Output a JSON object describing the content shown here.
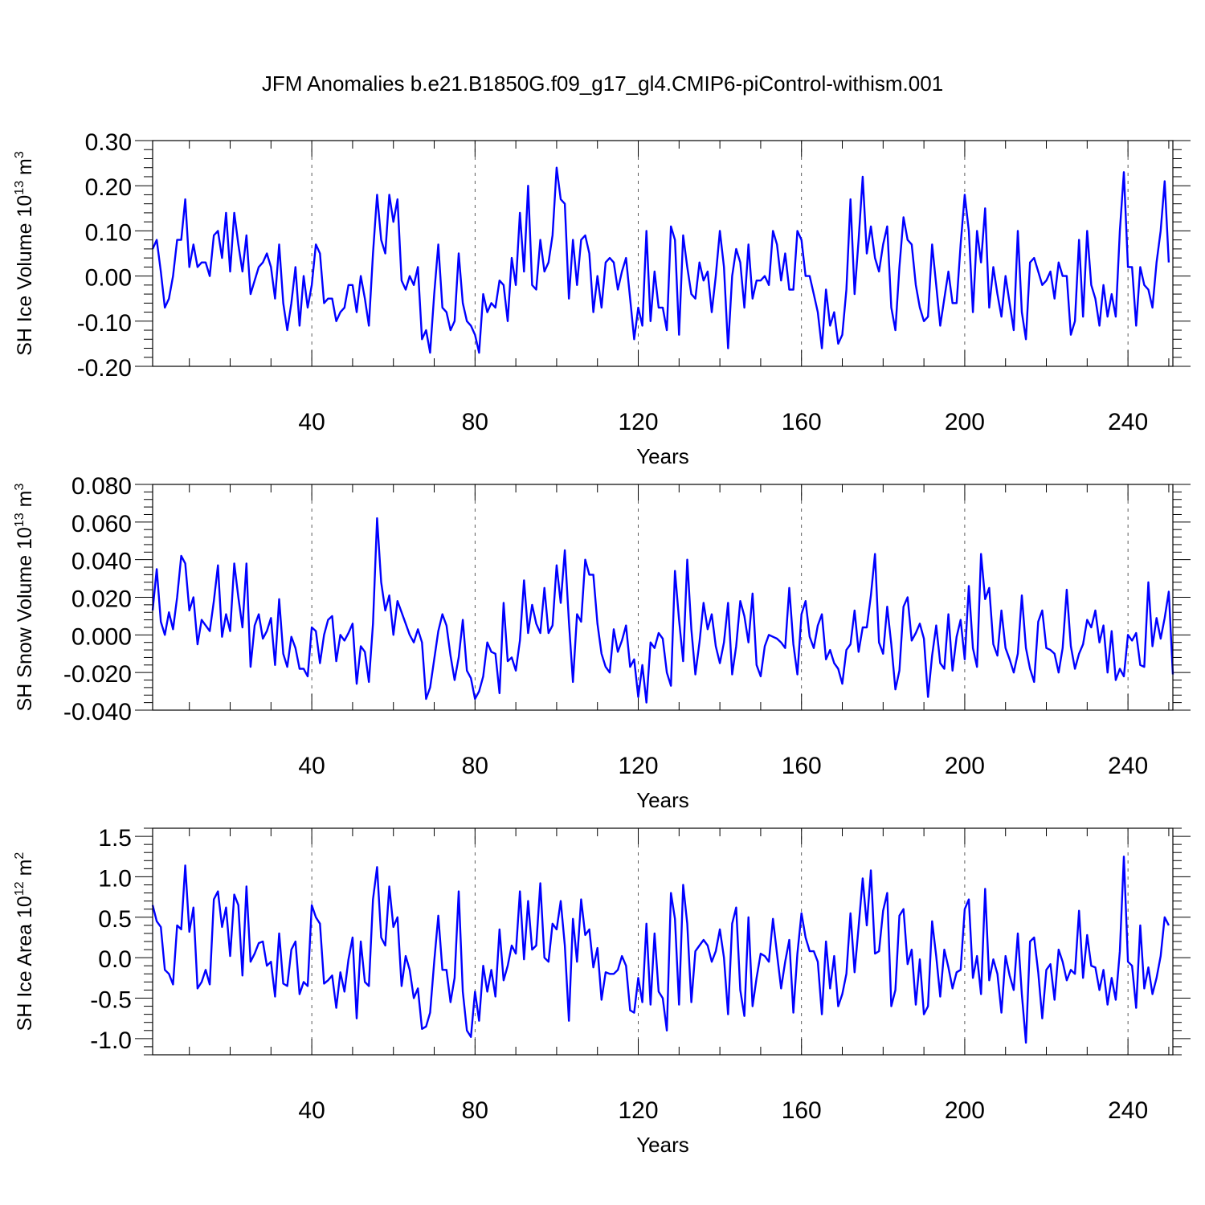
{
  "title": "JFM Anomalies b.e21.B1850G.f09_g17_gl4.CMIP6-piControl-withism.001",
  "chart_data": [
    {
      "type": "line",
      "ylabel_text": "SH Ice Volume 10",
      "ylabel_exp": "13",
      "ylabel_unit": " m",
      "ylabel_unit_exp": "3",
      "xlabel": "Years",
      "xlim": [
        1,
        251
      ],
      "ylim": [
        -0.2,
        0.3
      ],
      "yticks": [
        -0.2,
        -0.1,
        0.0,
        0.1,
        0.2,
        0.3
      ],
      "ytick_labels": [
        "-0.20",
        "-0.10",
        "0.00",
        "0.10",
        "0.20",
        "0.30"
      ],
      "xticks": [
        40,
        80,
        120,
        160,
        200,
        240
      ],
      "xtick_labels": [
        "40",
        "80",
        "120",
        "160",
        "200",
        "240"
      ],
      "grid_x": "dashed",
      "series": [
        {
          "name": "SH Ice Volume",
          "color": "#0000ff",
          "values": [
            0.06,
            0.08,
            0.01,
            -0.07,
            -0.05,
            0.0,
            0.08,
            0.08,
            0.17,
            0.02,
            0.07,
            0.02,
            0.03,
            0.03,
            0.0,
            0.09,
            0.1,
            0.04,
            0.14,
            0.01,
            0.14,
            0.07,
            0.01,
            0.09,
            -0.04,
            -0.01,
            0.02,
            0.03,
            0.05,
            0.02,
            -0.05,
            0.07,
            -0.06,
            -0.12,
            -0.06,
            0.02,
            -0.11,
            0.0,
            -0.07,
            -0.02,
            0.07,
            0.05,
            -0.06,
            -0.05,
            -0.05,
            -0.1,
            -0.08,
            -0.07,
            -0.02,
            -0.02,
            -0.08,
            0.0,
            -0.05,
            -0.11,
            0.05,
            0.18,
            0.08,
            0.05,
            0.18,
            0.12,
            0.17,
            -0.01,
            -0.03,
            0.0,
            -0.02,
            0.02,
            -0.14,
            -0.12,
            -0.17,
            -0.04,
            0.07,
            -0.07,
            -0.08,
            -0.12,
            -0.1,
            0.05,
            -0.06,
            -0.1,
            -0.11,
            -0.13,
            -0.17,
            -0.04,
            -0.08,
            -0.06,
            -0.07,
            -0.01,
            -0.02,
            -0.1,
            0.04,
            -0.02,
            0.14,
            0.01,
            0.2,
            -0.02,
            -0.03,
            0.08,
            0.01,
            0.03,
            0.09,
            0.24,
            0.17,
            0.16,
            -0.05,
            0.08,
            -0.02,
            0.08,
            0.09,
            0.05,
            -0.08,
            0.0,
            -0.07,
            0.03,
            0.04,
            0.03,
            -0.03,
            0.01,
            0.04,
            -0.05,
            -0.14,
            -0.07,
            -0.11,
            0.1,
            -0.1,
            0.01,
            -0.07,
            -0.07,
            -0.12,
            0.11,
            0.08,
            -0.13,
            0.09,
            0.02,
            -0.04,
            -0.05,
            0.03,
            -0.01,
            0.01,
            -0.08,
            0.0,
            0.1,
            0.02,
            -0.16,
            0.0,
            0.06,
            0.03,
            -0.07,
            0.07,
            -0.05,
            -0.01,
            -0.01,
            0.0,
            -0.02,
            0.1,
            0.07,
            -0.01,
            0.05,
            -0.03,
            -0.03,
            0.1,
            0.08,
            0.0,
            0.0,
            -0.04,
            -0.08,
            -0.16,
            -0.03,
            -0.11,
            -0.08,
            -0.15,
            -0.13,
            -0.03,
            0.17,
            -0.04,
            0.08,
            0.22,
            0.05,
            0.11,
            0.04,
            0.01,
            0.07,
            0.11,
            -0.07,
            -0.12,
            0.02,
            0.13,
            0.08,
            0.07,
            -0.02,
            -0.07,
            -0.1,
            -0.09,
            0.07,
            -0.02,
            -0.11,
            -0.05,
            0.01,
            -0.06,
            -0.06,
            0.07,
            0.18,
            0.1,
            -0.08,
            0.1,
            0.03,
            0.15,
            -0.07,
            0.02,
            -0.04,
            -0.09,
            0.0,
            -0.06,
            -0.12,
            0.1,
            -0.08,
            -0.14,
            0.03,
            0.04,
            0.01,
            -0.02,
            -0.01,
            0.01,
            -0.05,
            0.03,
            0.0,
            0.0,
            -0.13,
            -0.1,
            0.08,
            -0.09,
            0.1,
            -0.02,
            -0.05,
            -0.11,
            -0.02,
            -0.09,
            -0.04,
            -0.09,
            0.1,
            0.23,
            0.02,
            0.02,
            -0.11,
            0.02,
            -0.02,
            -0.03,
            -0.07,
            0.03,
            0.1,
            0.21,
            0.03
          ]
        }
      ]
    },
    {
      "type": "line",
      "ylabel_text": "SH Snow Volume 10",
      "ylabel_exp": "13",
      "ylabel_unit": " m",
      "ylabel_unit_exp": "3",
      "xlabel": "Years",
      "xlim": [
        1,
        251
      ],
      "ylim": [
        -0.04,
        0.08
      ],
      "yticks": [
        -0.04,
        -0.02,
        0.0,
        0.02,
        0.04,
        0.06,
        0.08
      ],
      "ytick_labels": [
        "-0.040",
        "-0.020",
        "0.000",
        "0.020",
        "0.040",
        "0.060",
        "0.080"
      ],
      "xticks": [
        40,
        80,
        120,
        160,
        200,
        240
      ],
      "xtick_labels": [
        "40",
        "80",
        "120",
        "160",
        "200",
        "240"
      ],
      "grid_x": "dashed",
      "series": [
        {
          "name": "SH Snow Volume",
          "color": "#0000ff",
          "values": [
            0.013,
            0.035,
            0.007,
            0.0,
            0.012,
            0.003,
            0.02,
            0.042,
            0.038,
            0.013,
            0.02,
            -0.005,
            0.008,
            0.005,
            0.002,
            0.018,
            0.037,
            -0.001,
            0.011,
            0.002,
            0.038,
            0.02,
            0.004,
            0.038,
            -0.017,
            0.005,
            0.011,
            -0.002,
            0.002,
            0.009,
            -0.016,
            0.019,
            -0.01,
            -0.017,
            -0.001,
            -0.007,
            -0.018,
            -0.018,
            -0.022,
            0.004,
            0.002,
            -0.015,
            0.0,
            0.008,
            0.01,
            -0.014,
            0.0,
            -0.003,
            0.001,
            0.006,
            -0.026,
            -0.006,
            -0.009,
            -0.025,
            0.006,
            0.062,
            0.028,
            0.013,
            0.021,
            0.0,
            0.018,
            0.012,
            0.006,
            0.0,
            -0.004,
            0.003,
            -0.004,
            -0.034,
            -0.028,
            -0.013,
            0.002,
            0.011,
            0.005,
            -0.011,
            -0.024,
            -0.012,
            0.008,
            -0.019,
            -0.023,
            -0.034,
            -0.03,
            -0.022,
            -0.004,
            -0.009,
            -0.01,
            -0.031,
            0.017,
            -0.014,
            -0.012,
            -0.019,
            -0.003,
            0.029,
            0.001,
            0.016,
            0.006,
            0.001,
            0.025,
            0.001,
            0.005,
            0.037,
            0.017,
            0.045,
            0.007,
            -0.025,
            0.011,
            0.007,
            0.04,
            0.032,
            0.032,
            0.006,
            -0.01,
            -0.017,
            -0.02,
            0.003,
            -0.009,
            -0.003,
            0.005,
            -0.017,
            -0.013,
            -0.033,
            -0.016,
            -0.036,
            -0.004,
            -0.007,
            0.001,
            -0.002,
            -0.02,
            -0.027,
            0.034,
            0.008,
            -0.014,
            0.04,
            0.003,
            -0.021,
            -0.004,
            0.017,
            0.003,
            0.011,
            -0.006,
            -0.015,
            -0.004,
            0.017,
            -0.021,
            -0.006,
            0.018,
            0.01,
            -0.004,
            0.022,
            -0.016,
            -0.022,
            -0.006,
            0.0,
            -0.001,
            -0.002,
            -0.004,
            -0.007,
            0.025,
            -0.005,
            -0.021,
            0.011,
            0.018,
            -0.001,
            -0.007,
            0.005,
            0.011,
            -0.013,
            -0.008,
            -0.015,
            -0.018,
            -0.026,
            -0.008,
            -0.005,
            0.013,
            -0.009,
            0.004,
            0.004,
            0.021,
            0.043,
            -0.004,
            -0.01,
            0.015,
            -0.005,
            -0.029,
            -0.019,
            0.015,
            0.02,
            -0.003,
            0.001,
            0.006,
            -0.002,
            -0.033,
            -0.011,
            0.005,
            -0.015,
            -0.018,
            0.011,
            -0.019,
            -0.001,
            0.008,
            -0.013,
            0.026,
            -0.007,
            -0.017,
            0.043,
            0.019,
            0.025,
            -0.005,
            -0.011,
            0.013,
            -0.007,
            -0.013,
            -0.02,
            -0.01,
            0.021,
            -0.007,
            -0.018,
            -0.025,
            0.007,
            0.013,
            -0.007,
            -0.008,
            -0.01,
            -0.02,
            -0.007,
            0.024,
            -0.006,
            -0.018,
            -0.01,
            -0.005,
            0.008,
            0.004,
            0.013,
            -0.004,
            0.005,
            -0.02,
            0.002,
            -0.024,
            -0.018,
            -0.022,
            0.0,
            -0.003,
            0.001,
            -0.016,
            -0.017,
            0.028,
            -0.006,
            0.009,
            -0.002,
            0.009,
            0.023,
            -0.021
          ]
        }
      ]
    },
    {
      "type": "line",
      "ylabel_text": "SH Ice Area 10",
      "ylabel_exp": "12",
      "ylabel_unit": " m",
      "ylabel_unit_exp": "2",
      "xlabel": "Years",
      "xlim": [
        1,
        251
      ],
      "ylim": [
        -1.2,
        1.6
      ],
      "yticks": [
        -1.0,
        -0.5,
        0.0,
        0.5,
        1.0,
        1.5
      ],
      "ytick_labels": [
        "-1.0",
        "-0.5",
        "0.0",
        "0.5",
        "1.0",
        "1.5"
      ],
      "xticks": [
        40,
        80,
        120,
        160,
        200,
        240
      ],
      "xtick_labels": [
        "40",
        "80",
        "120",
        "160",
        "200",
        "240"
      ],
      "grid_x": "dashed",
      "series": [
        {
          "name": "SH Ice Area",
          "color": "#0000ff",
          "values": [
            0.65,
            0.45,
            0.38,
            -0.15,
            -0.2,
            -0.33,
            0.4,
            0.35,
            1.14,
            0.32,
            0.62,
            -0.38,
            -0.3,
            -0.15,
            -0.33,
            0.72,
            0.82,
            0.38,
            0.62,
            0.02,
            0.78,
            0.65,
            -0.22,
            0.88,
            -0.05,
            0.05,
            0.18,
            0.2,
            -0.1,
            -0.05,
            -0.48,
            0.3,
            -0.32,
            -0.35,
            0.1,
            0.2,
            -0.45,
            -0.3,
            -0.35,
            0.65,
            0.5,
            0.42,
            -0.32,
            -0.28,
            -0.22,
            -0.62,
            -0.18,
            -0.42,
            -0.02,
            0.25,
            -0.75,
            0.2,
            -0.3,
            -0.35,
            0.72,
            1.12,
            0.25,
            0.15,
            0.88,
            0.38,
            0.5,
            -0.35,
            0.02,
            -0.15,
            -0.5,
            -0.38,
            -0.88,
            -0.85,
            -0.68,
            -0.05,
            0.52,
            -0.15,
            -0.15,
            -0.55,
            -0.25,
            0.82,
            -0.42,
            -0.9,
            -0.98,
            -0.42,
            -0.78,
            -0.1,
            -0.42,
            -0.15,
            -0.48,
            0.35,
            -0.28,
            -0.1,
            0.15,
            0.05,
            0.82,
            -0.02,
            0.7,
            0.1,
            0.15,
            0.92,
            0.0,
            -0.05,
            0.42,
            0.35,
            0.7,
            0.15,
            -0.78,
            0.48,
            -0.05,
            0.72,
            0.28,
            0.35,
            -0.12,
            0.12,
            -0.52,
            -0.18,
            -0.2,
            -0.2,
            -0.15,
            0.02,
            -0.1,
            -0.65,
            -0.68,
            -0.25,
            -0.55,
            0.42,
            -0.58,
            0.3,
            -0.42,
            -0.5,
            -0.9,
            0.8,
            0.48,
            -0.58,
            0.9,
            0.42,
            -0.55,
            0.08,
            0.15,
            0.22,
            0.15,
            -0.05,
            0.08,
            0.35,
            0.0,
            -0.7,
            0.42,
            0.62,
            -0.4,
            -0.72,
            0.5,
            -0.6,
            -0.25,
            0.05,
            0.02,
            -0.05,
            0.48,
            0.05,
            -0.38,
            -0.05,
            0.22,
            -0.68,
            0.05,
            0.55,
            0.25,
            0.08,
            0.08,
            -0.05,
            -0.7,
            0.2,
            -0.38,
            0.02,
            -0.6,
            -0.45,
            -0.2,
            0.55,
            -0.18,
            0.38,
            0.98,
            0.4,
            1.08,
            0.05,
            0.08,
            0.58,
            0.8,
            -0.6,
            -0.4,
            0.52,
            0.6,
            -0.08,
            0.1,
            -0.58,
            -0.02,
            -0.7,
            -0.6,
            0.45,
            0.02,
            -0.48,
            0.1,
            -0.12,
            -0.38,
            -0.18,
            -0.15,
            0.6,
            0.72,
            -0.25,
            0.02,
            -0.45,
            0.85,
            -0.28,
            -0.02,
            -0.2,
            -0.68,
            0.02,
            -0.22,
            -0.4,
            0.3,
            -0.45,
            -1.05,
            0.2,
            0.25,
            -0.18,
            -0.75,
            -0.15,
            -0.08,
            -0.52,
            0.1,
            -0.05,
            -0.28,
            -0.15,
            -0.2,
            0.58,
            -0.25,
            0.28,
            -0.1,
            -0.12,
            -0.4,
            -0.15,
            -0.58,
            -0.25,
            -0.52,
            0.08,
            1.25,
            -0.05,
            -0.1,
            -0.62,
            0.4,
            -0.38,
            -0.12,
            -0.45,
            -0.25,
            0.02,
            0.5,
            0.4
          ]
        }
      ]
    }
  ]
}
